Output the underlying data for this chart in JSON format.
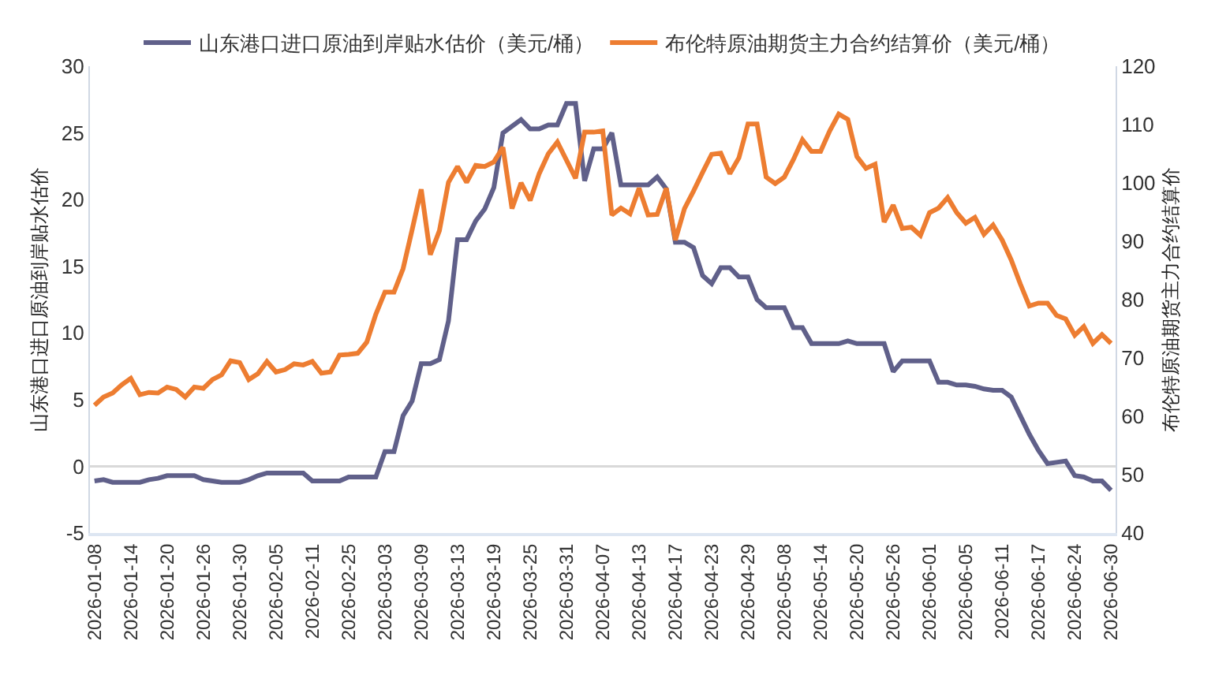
{
  "chart_data": {
    "type": "line",
    "categories": [
      "2026-01-08",
      null,
      null,
      null,
      "2026-01-14",
      null,
      null,
      null,
      "2026-01-20",
      null,
      null,
      null,
      "2026-01-26",
      null,
      null,
      null,
      "2026-01-30",
      null,
      null,
      null,
      "2026-02-05",
      null,
      null,
      null,
      "2026-02-11",
      null,
      null,
      null,
      "2026-02-25",
      null,
      null,
      null,
      "2026-03-03",
      null,
      null,
      null,
      "2026-03-09",
      null,
      null,
      null,
      "2026-03-13",
      null,
      null,
      null,
      "2026-03-19",
      null,
      null,
      null,
      "2026-03-25",
      null,
      null,
      null,
      "2026-03-31",
      null,
      null,
      null,
      "2026-04-07",
      null,
      null,
      null,
      "2026-04-13",
      null,
      null,
      null,
      "2026-04-17",
      null,
      null,
      null,
      "2026-04-23",
      null,
      null,
      null,
      "2026-04-29",
      null,
      null,
      null,
      "2026-05-08",
      null,
      null,
      null,
      "2026-05-14",
      null,
      null,
      null,
      "2026-05-20",
      null,
      null,
      null,
      "2026-05-26",
      null,
      null,
      null,
      "2026-06-01",
      null,
      null,
      null,
      "2026-06-05",
      null,
      null,
      null,
      "2026-06-11",
      null,
      null,
      null,
      "2026-06-17",
      null,
      null,
      null,
      "2026-06-24",
      null,
      null,
      null,
      "2026-06-30"
    ],
    "series": [
      {
        "name": "山东港口进口原油到岸贴水估价（美元/桶）",
        "color": "#60608a",
        "values": [
          -1.1,
          -1.0,
          -1.2,
          -1.2,
          -1.2,
          -1.2,
          -1.0,
          -0.9,
          -0.7,
          -0.7,
          -0.7,
          -0.7,
          -1.0,
          -1.1,
          -1.2,
          -1.2,
          -1.2,
          -1.0,
          -0.7,
          -0.5,
          -0.5,
          -0.5,
          -0.5,
          -0.5,
          -1.1,
          -1.1,
          -1.1,
          -1.1,
          -0.8,
          -0.8,
          -0.8,
          -0.8,
          1.1,
          1.1,
          3.8,
          4.9,
          7.7,
          7.7,
          8.0,
          10.9,
          17.0,
          17.0,
          18.4,
          19.3,
          20.9,
          25.0,
          25.5,
          26.0,
          25.3,
          25.3,
          25.6,
          25.6,
          27.2,
          27.2,
          21.4,
          23.8,
          23.8,
          25.0,
          21.1,
          21.1,
          21.1,
          21.1,
          21.7,
          20.8,
          16.8,
          16.8,
          16.4,
          14.3,
          13.7,
          14.9,
          14.9,
          14.2,
          14.2,
          12.5,
          11.9,
          11.9,
          11.9,
          10.4,
          10.4,
          9.2,
          9.2,
          9.2,
          9.2,
          9.4,
          9.2,
          9.2,
          9.2,
          9.2,
          7.1,
          7.9,
          7.9,
          7.9,
          7.9,
          6.3,
          6.3,
          6.1,
          6.1,
          6.0,
          5.8,
          5.7,
          5.7,
          5.2,
          3.8,
          2.4,
          1.2,
          0.2,
          0.3,
          0.4,
          -0.7,
          -0.8,
          -1.1,
          -1.1,
          -1.8
        ]
      },
      {
        "name": "布伦特原油期货主力合约结算价（美元/桶）",
        "color": "#ed7d31",
        "axis": "y2",
        "values": [
          61.9,
          63.3,
          64.0,
          65.4,
          66.5,
          63.7,
          64.1,
          64.0,
          65.0,
          64.6,
          63.3,
          65.0,
          64.8,
          66.3,
          67.1,
          69.5,
          69.2,
          66.3,
          67.3,
          69.4,
          67.6,
          68.0,
          69.0,
          68.8,
          69.4,
          67.4,
          67.6,
          70.5,
          70.6,
          70.8,
          72.7,
          77.5,
          81.3,
          81.3,
          85.3,
          92.0,
          98.9,
          87.7,
          91.8,
          100.1,
          102.8,
          100.1,
          103.0,
          102.8,
          103.6,
          106.1,
          95.6,
          100.0,
          97.0,
          101.6,
          105.0,
          107.0,
          103.9,
          100.8,
          108.7,
          108.7,
          108.9,
          94.5,
          95.7,
          94.7,
          99.1,
          94.5,
          94.6,
          99.1,
          90.2,
          95.6,
          98.6,
          101.8,
          104.9,
          105.1,
          101.6,
          104.3,
          110.1,
          110.1,
          101.0,
          99.9,
          101.0,
          104.0,
          107.4,
          105.4,
          105.4,
          108.9,
          111.8,
          110.9,
          104.5,
          102.5,
          103.2,
          93.3,
          96.2,
          92.2,
          92.4,
          91.0,
          94.9,
          95.7,
          97.5,
          94.9,
          93.1,
          94.1,
          91.2,
          92.8,
          90.2,
          86.8,
          82.7,
          78.9,
          79.4,
          79.4,
          77.3,
          76.7,
          73.9,
          75.4,
          72.5,
          74.0,
          72.5
        ]
      }
    ],
    "ylabel": "山东港口进口原油到岸贴水估价",
    "y2label": "布伦特原油期货主力合约结算价",
    "ylim": [
      -5,
      30
    ],
    "yticks": [
      -5,
      0,
      5,
      10,
      15,
      20,
      25,
      30
    ],
    "y2lim": [
      40,
      120
    ],
    "y2ticks": [
      40,
      50,
      60,
      70,
      80,
      90,
      100,
      110,
      120
    ],
    "ref_lines": [
      {
        "axis": "y",
        "value": 0,
        "color": "#d9d9d9"
      }
    ],
    "grid": false,
    "legend": "top",
    "marker": "none",
    "line_style": "solid"
  }
}
